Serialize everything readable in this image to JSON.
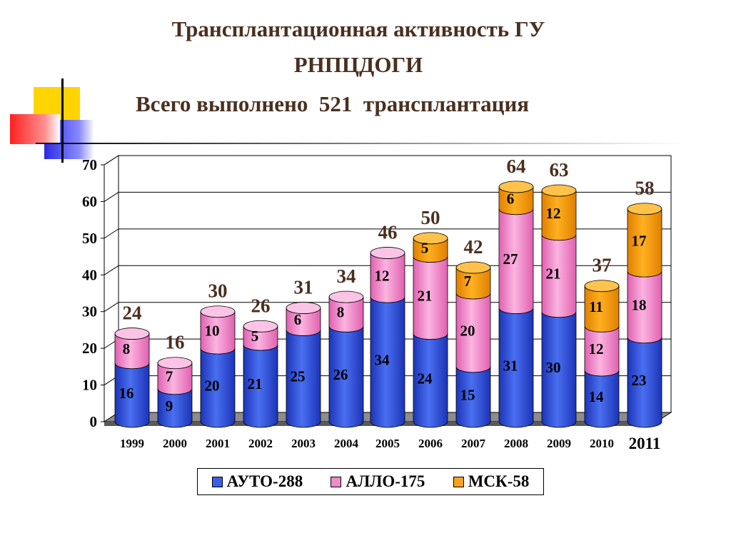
{
  "title_line1": "Трансплантационная активность ГУ",
  "title_line2": "РНПЦДОГИ",
  "subtitle": "Всего выполнено  521  трансплантация",
  "colors": {
    "auto": "#3a5fe8",
    "allo": "#f08ac8",
    "msk": "#f7a21a",
    "title": "#4a3020"
  },
  "chart_data": {
    "type": "bar",
    "stacked": true,
    "categories": [
      "1999",
      "2000",
      "2001",
      "2002",
      "2003",
      "2004",
      "2005",
      "2006",
      "2007",
      "2008",
      "2009",
      "2010",
      "2011"
    ],
    "series": [
      {
        "name": "АУТО-288",
        "values": [
          16,
          9,
          20,
          21,
          25,
          26,
          34,
          24,
          15,
          31,
          30,
          14,
          23
        ]
      },
      {
        "name": "АЛЛО-175",
        "values": [
          8,
          7,
          10,
          5,
          6,
          8,
          12,
          21,
          20,
          27,
          21,
          12,
          18
        ]
      },
      {
        "name": "МСК-58",
        "values": [
          null,
          null,
          null,
          null,
          null,
          null,
          null,
          5,
          7,
          6,
          12,
          11,
          17
        ]
      }
    ],
    "totals": [
      24,
      16,
      30,
      26,
      31,
      34,
      46,
      50,
      42,
      64,
      63,
      37,
      58
    ],
    "yticks": [
      "0",
      "10",
      "20",
      "30",
      "40",
      "50",
      "60",
      "70"
    ],
    "ylim": [
      0,
      70
    ],
    "grid": true,
    "legend_position": "bottom",
    "style": "3d-cylinder"
  }
}
